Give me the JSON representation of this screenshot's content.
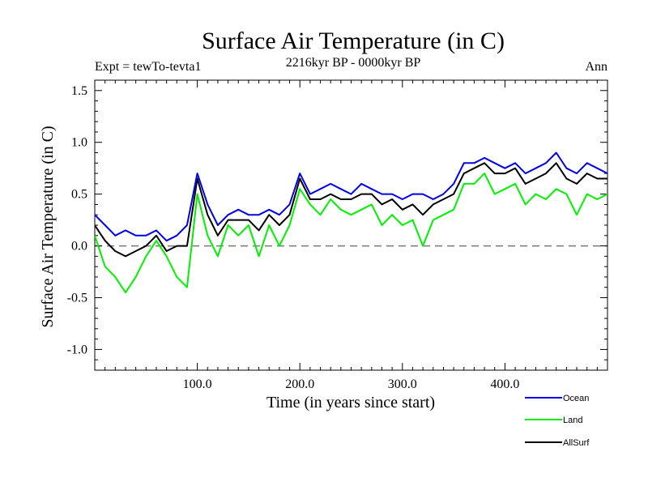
{
  "chart_data": {
    "type": "line",
    "title": "Surface Air Temperature (in C)",
    "subtitle": "2216kyr BP - 0000kyr BP",
    "expt_label": "Expt = tewTo-tevta1",
    "season_label": "Ann",
    "xlabel": "Time (in years since start)",
    "ylabel": "Surface Air Temperature (in C)",
    "xlim": [
      0,
      500
    ],
    "ylim": [
      -1.2,
      1.6
    ],
    "x_ticks": [
      100,
      200,
      300,
      400
    ],
    "x_tick_labels": [
      "100.0",
      "200.0",
      "300.0",
      "400.0"
    ],
    "y_ticks": [
      -1.0,
      -0.5,
      0.0,
      0.5,
      1.0,
      1.5
    ],
    "y_tick_labels": [
      "-1.0",
      "-0.5",
      "0.0",
      "0.5",
      "1.0",
      "1.5"
    ],
    "reference_line": 0.0,
    "x": [
      0,
      10,
      20,
      30,
      40,
      50,
      60,
      70,
      80,
      90,
      100,
      110,
      120,
      130,
      140,
      150,
      160,
      170,
      180,
      190,
      200,
      210,
      220,
      230,
      240,
      250,
      260,
      270,
      280,
      290,
      300,
      310,
      320,
      330,
      340,
      350,
      360,
      370,
      380,
      390,
      400,
      410,
      420,
      430,
      440,
      450,
      460,
      470,
      480,
      490,
      500
    ],
    "series": [
      {
        "name": "Ocean",
        "color": "#0000e6",
        "values": [
          0.3,
          0.2,
          0.1,
          0.15,
          0.1,
          0.1,
          0.15,
          0.05,
          0.1,
          0.2,
          0.7,
          0.4,
          0.2,
          0.3,
          0.35,
          0.3,
          0.3,
          0.35,
          0.3,
          0.4,
          0.7,
          0.5,
          0.55,
          0.6,
          0.55,
          0.5,
          0.6,
          0.55,
          0.5,
          0.5,
          0.45,
          0.5,
          0.5,
          0.45,
          0.5,
          0.6,
          0.8,
          0.8,
          0.85,
          0.8,
          0.75,
          0.8,
          0.7,
          0.75,
          0.8,
          0.9,
          0.75,
          0.7,
          0.8,
          0.75,
          0.7
        ]
      },
      {
        "name": "Land",
        "color": "#00ee00",
        "values": [
          0.1,
          -0.2,
          -0.3,
          -0.45,
          -0.3,
          -0.1,
          0.05,
          -0.1,
          -0.3,
          -0.4,
          0.5,
          0.1,
          -0.1,
          0.2,
          0.1,
          0.2,
          -0.1,
          0.2,
          0.0,
          0.2,
          0.55,
          0.4,
          0.3,
          0.45,
          0.35,
          0.3,
          0.35,
          0.4,
          0.2,
          0.3,
          0.2,
          0.25,
          0.0,
          0.25,
          0.3,
          0.35,
          0.6,
          0.6,
          0.7,
          0.5,
          0.55,
          0.6,
          0.4,
          0.5,
          0.45,
          0.55,
          0.5,
          0.3,
          0.5,
          0.45,
          0.5
        ]
      },
      {
        "name": "AllSurf",
        "color": "#000000",
        "values": [
          0.2,
          0.05,
          -0.05,
          -0.1,
          -0.05,
          0.0,
          0.1,
          -0.05,
          0.0,
          0.0,
          0.65,
          0.3,
          0.1,
          0.25,
          0.25,
          0.25,
          0.15,
          0.3,
          0.2,
          0.3,
          0.65,
          0.45,
          0.45,
          0.5,
          0.45,
          0.45,
          0.5,
          0.5,
          0.4,
          0.45,
          0.35,
          0.4,
          0.3,
          0.4,
          0.45,
          0.5,
          0.7,
          0.75,
          0.8,
          0.7,
          0.7,
          0.75,
          0.6,
          0.65,
          0.7,
          0.8,
          0.65,
          0.6,
          0.7,
          0.65,
          0.65
        ]
      }
    ]
  }
}
